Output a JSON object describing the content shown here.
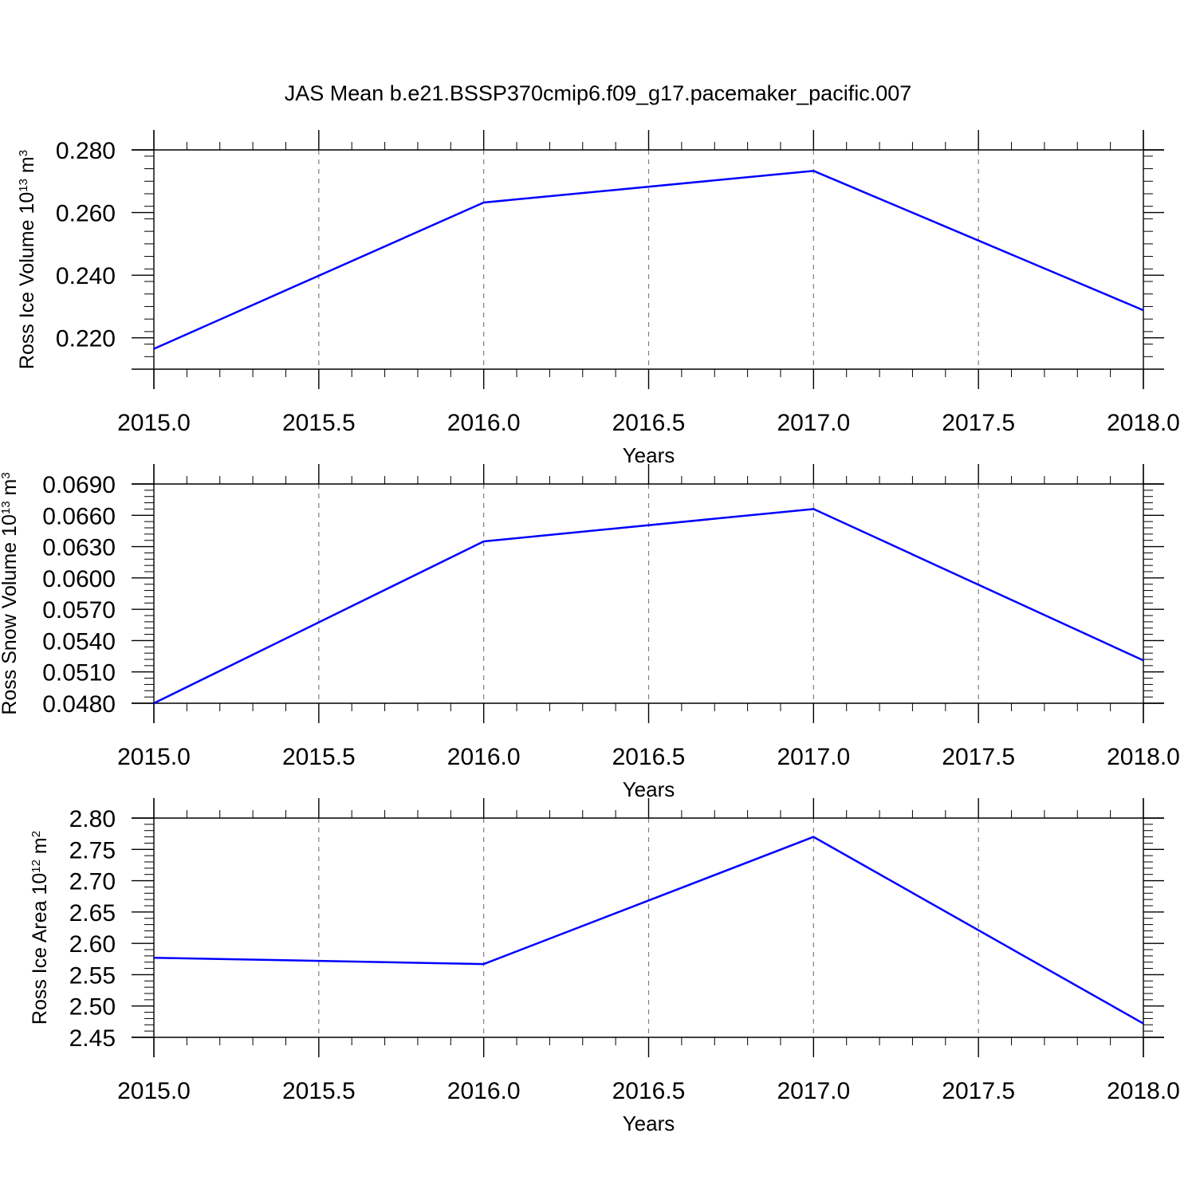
{
  "title": "JAS Mean b.e21.BSSP370cmip6.f09_g17.pacemaker_pacific.007",
  "colors": {
    "line": "#0000ff",
    "axis": "#000000",
    "grid": "#808080"
  },
  "chart_data": [
    {
      "type": "line",
      "x": [
        2015,
        2016,
        2017,
        2018
      ],
      "series": [
        {
          "values": [
            0.2165,
            0.2632,
            0.2733,
            0.2288
          ]
        }
      ],
      "xlabel": "Years",
      "ylabel": {
        "text": "Ross Ice Volume 10",
        "exp": "13",
        "unit": " m",
        "unit_exp": "3"
      },
      "xlim": [
        2015,
        2018
      ],
      "ylim": [
        0.21,
        0.28
      ],
      "xticks": [
        2015.0,
        2015.5,
        2016.0,
        2016.5,
        2017.0,
        2017.5,
        2018.0
      ],
      "xtick_labels": [
        "2015.0",
        "2015.5",
        "2016.0",
        "2016.5",
        "2017.0",
        "2017.5",
        "2018.0"
      ],
      "yticks": [
        0.22,
        0.24,
        0.26,
        0.28
      ],
      "ytick_labels": [
        "0.220",
        "0.240",
        "0.260",
        "0.280"
      ],
      "yminor_step": 0.004,
      "grid": "vertical dashed"
    },
    {
      "type": "line",
      "x": [
        2015,
        2016,
        2017,
        2018
      ],
      "series": [
        {
          "values": [
            0.048,
            0.0635,
            0.0666,
            0.0521
          ]
        }
      ],
      "xlabel": "Years",
      "ylabel": {
        "text": "Ross Snow Volume 10",
        "exp": "13",
        "unit": " m",
        "unit_exp": "3"
      },
      "xlim": [
        2015,
        2018
      ],
      "ylim": [
        0.048,
        0.069
      ],
      "xticks": [
        2015.0,
        2015.5,
        2016.0,
        2016.5,
        2017.0,
        2017.5,
        2018.0
      ],
      "xtick_labels": [
        "2015.0",
        "2015.5",
        "2016.0",
        "2016.5",
        "2017.0",
        "2017.5",
        "2018.0"
      ],
      "yticks": [
        0.048,
        0.051,
        0.054,
        0.057,
        0.06,
        0.063,
        0.066,
        0.069
      ],
      "ytick_labels": [
        "0.0480",
        "0.0510",
        "0.0540",
        "0.0570",
        "0.0600",
        "0.0630",
        "0.0660",
        "0.0690"
      ],
      "yminor_step": 0.0006,
      "grid": "vertical dashed"
    },
    {
      "type": "line",
      "x": [
        2015,
        2016,
        2017,
        2018
      ],
      "series": [
        {
          "values": [
            2.577,
            2.567,
            2.77,
            2.472
          ]
        }
      ],
      "xlabel": "Years",
      "ylabel": {
        "text": "Ross Ice Area 10",
        "exp": "12",
        "unit": " m",
        "unit_exp": "2"
      },
      "xlim": [
        2015,
        2018
      ],
      "ylim": [
        2.45,
        2.8
      ],
      "xticks": [
        2015.0,
        2015.5,
        2016.0,
        2016.5,
        2017.0,
        2017.5,
        2018.0
      ],
      "xtick_labels": [
        "2015.0",
        "2015.5",
        "2016.0",
        "2016.5",
        "2017.0",
        "2017.5",
        "2018.0"
      ],
      "yticks": [
        2.45,
        2.5,
        2.55,
        2.6,
        2.65,
        2.7,
        2.75,
        2.8
      ],
      "ytick_labels": [
        "2.45",
        "2.50",
        "2.55",
        "2.60",
        "2.65",
        "2.70",
        "2.75",
        "2.80"
      ],
      "yminor_step": 0.01,
      "grid": "vertical dashed"
    }
  ]
}
